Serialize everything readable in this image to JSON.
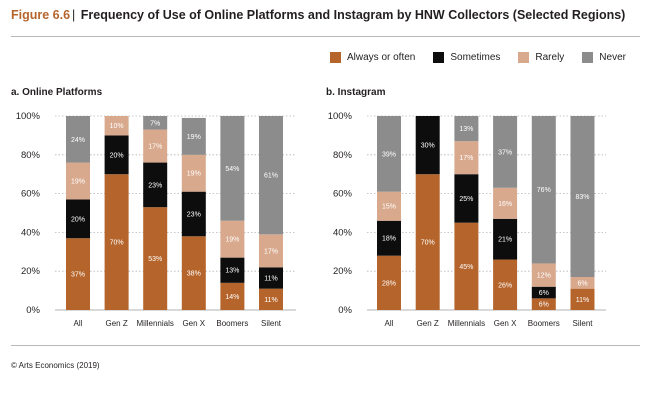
{
  "header": {
    "figure_label": "Figure 6.6",
    "title": "Frequency of Use of Online Platforms and Instagram by HNW Collectors (Selected Regions)"
  },
  "legend": [
    {
      "name": "Always or often",
      "color": "#b5652b"
    },
    {
      "name": "Sometimes",
      "color": "#0d0d0d"
    },
    {
      "name": "Rarely",
      "color": "#d9a98e"
    },
    {
      "name": "Never",
      "color": "#8c8c8c"
    }
  ],
  "source": "© Arts Economics (2019)",
  "chart_data": [
    {
      "type": "bar",
      "stacked": true,
      "title": "a. Online Platforms",
      "categories": [
        "All",
        "Gen Z",
        "Millennials",
        "Gen X",
        "Boomers",
        "Silent"
      ],
      "yticks": [
        "0%",
        "20%",
        "40%",
        "60%",
        "80%",
        "100%"
      ],
      "ylim": [
        0,
        100
      ],
      "grid": true,
      "series": [
        {
          "name": "Always or often",
          "values": [
            37,
            70,
            53,
            38,
            14,
            11
          ],
          "labels": [
            "37%",
            "70%",
            "53%",
            "38%",
            "14%",
            "11%"
          ]
        },
        {
          "name": "Sometimes",
          "values": [
            20,
            20,
            23,
            23,
            13,
            11
          ],
          "labels": [
            "20%",
            "20%",
            "23%",
            "23%",
            "13%",
            "11%"
          ]
        },
        {
          "name": "Rarely",
          "values": [
            19,
            10,
            17,
            19,
            19,
            17
          ],
          "labels": [
            "19%",
            "10%",
            "17%",
            "19%",
            "19%",
            "17%"
          ]
        },
        {
          "name": "Never",
          "values": [
            24,
            0,
            7,
            19,
            54,
            61
          ],
          "labels": [
            "24%",
            "",
            "7%",
            "19%",
            "54%",
            "61%"
          ]
        }
      ]
    },
    {
      "type": "bar",
      "stacked": true,
      "title": "b. Instagram",
      "categories": [
        "All",
        "Gen Z",
        "Millennials",
        "Gen X",
        "Boomers",
        "Silent"
      ],
      "yticks": [
        "0%",
        "20%",
        "40%",
        "60%",
        "80%",
        "100%"
      ],
      "ylim": [
        0,
        100
      ],
      "grid": true,
      "series": [
        {
          "name": "Always or often",
          "values": [
            28,
            70,
            45,
            26,
            6,
            11
          ],
          "labels": [
            "28%",
            "70%",
            "45%",
            "26%",
            "6%",
            "11%"
          ]
        },
        {
          "name": "Sometimes",
          "values": [
            18,
            30,
            25,
            21,
            6,
            0
          ],
          "labels": [
            "18%",
            "30%",
            "25%",
            "21%",
            "6%",
            ""
          ]
        },
        {
          "name": "Rarely",
          "values": [
            15,
            0,
            17,
            16,
            12,
            6
          ],
          "labels": [
            "15%",
            "",
            "17%",
            "16%",
            "12%",
            "6%"
          ]
        },
        {
          "name": "Never",
          "values": [
            39,
            0,
            13,
            37,
            76,
            83
          ],
          "labels": [
            "39%",
            "",
            "13%",
            "37%",
            "76%",
            "83%"
          ]
        }
      ]
    }
  ]
}
